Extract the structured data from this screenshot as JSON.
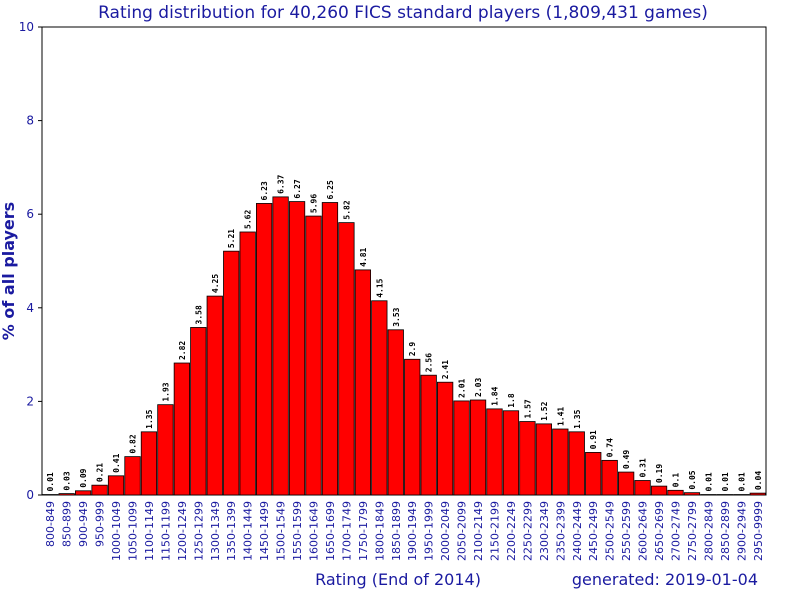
{
  "chart_data": {
    "type": "bar",
    "title": "Rating distribution for 40,260 FICS standard players (1,809,431 games)",
    "xlabel": "Rating (End of 2014)",
    "ylabel": "% of all players",
    "footer": "generated: 2019-01-04",
    "ylim": [
      0,
      10
    ],
    "yticks": [
      "0",
      "2",
      "4",
      "6",
      "8",
      "10"
    ],
    "grid": false,
    "legend": "none",
    "bar_color": "#ff0000",
    "categories": [
      "800-849",
      "850-899",
      "900-949",
      "950-999",
      "1000-1049",
      "1050-1099",
      "1100-1149",
      "1150-1199",
      "1200-1249",
      "1250-1299",
      "1300-1349",
      "1350-1399",
      "1400-1449",
      "1450-1499",
      "1500-1549",
      "1550-1599",
      "1600-1649",
      "1650-1699",
      "1700-1749",
      "1750-1799",
      "1800-1849",
      "1850-1899",
      "1900-1949",
      "1950-1999",
      "2000-2049",
      "2050-2099",
      "2100-2149",
      "2150-2199",
      "2200-2249",
      "2250-2299",
      "2300-2349",
      "2350-2399",
      "2400-2449",
      "2450-2499",
      "2500-2549",
      "2550-2599",
      "2600-2649",
      "2650-2699",
      "2700-2749",
      "2750-2799",
      "2800-2849",
      "2850-2899",
      "2900-2949",
      "2950-9999"
    ],
    "values": [
      0.01,
      0.03,
      0.09,
      0.21,
      0.41,
      0.82,
      1.35,
      1.93,
      2.82,
      3.58,
      4.25,
      5.21,
      5.62,
      6.23,
      6.37,
      6.27,
      5.96,
      6.25,
      5.82,
      4.81,
      4.15,
      3.53,
      2.9,
      2.56,
      2.41,
      2.01,
      2.03,
      1.84,
      1.8,
      1.57,
      1.52,
      1.41,
      1.35,
      0.91,
      0.74,
      0.49,
      0.31,
      0.19,
      0.1,
      0.05,
      0.01,
      0.01,
      0.01,
      0.04
    ],
    "value_labels": [
      "0.01",
      "0.03",
      "0.09",
      "0.21",
      "0.41",
      "0.82",
      "1.35",
      "1.93",
      "2.82",
      "3.58",
      "4.25",
      "5.21",
      "5.62",
      "6.23",
      "6.37",
      "6.27",
      "5.96",
      "6.25",
      "5.82",
      "4.81",
      "4.15",
      "3.53",
      "2.9",
      "2.56",
      "2.41",
      "2.01",
      "2.03",
      "1.84",
      "1.8",
      "1.57",
      "1.52",
      "1.41",
      "1.35",
      "0.91",
      "0.74",
      "0.49",
      "0.31",
      "0.19",
      "0.1",
      "0.05",
      "0.01",
      "0.01",
      "0.01",
      "0.04"
    ]
  }
}
